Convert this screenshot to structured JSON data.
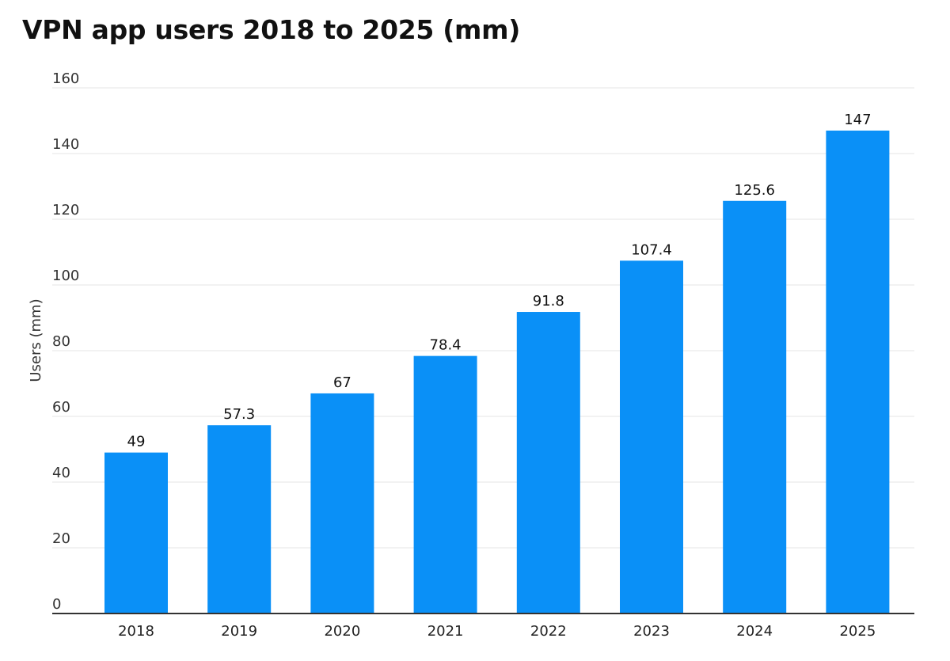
{
  "chart_data": {
    "type": "bar",
    "title": "VPN app users 2018 to 2025 (mm)",
    "xlabel": "",
    "ylabel": "Users (mm)",
    "categories": [
      "2018",
      "2019",
      "2020",
      "2021",
      "2022",
      "2023",
      "2024",
      "2025"
    ],
    "values": [
      49,
      57.3,
      67,
      78.4,
      91.8,
      107.4,
      125.6,
      147
    ],
    "data_labels": [
      "49",
      "57.3",
      "67",
      "78.4",
      "91.8",
      "107.4",
      "125.6",
      "147"
    ],
    "ylim": [
      0,
      160
    ],
    "yticks": [
      0,
      20,
      40,
      60,
      80,
      100,
      120,
      140,
      160
    ],
    "ytick_labels": [
      "0",
      "20",
      "40",
      "60",
      "80",
      "100",
      "120",
      "140",
      "160"
    ],
    "grid": true,
    "legend": "none",
    "colors": {
      "bar": "#0a90f7",
      "grid": "#e6e6e6",
      "axis": "#333333",
      "text": "#111111"
    }
  }
}
